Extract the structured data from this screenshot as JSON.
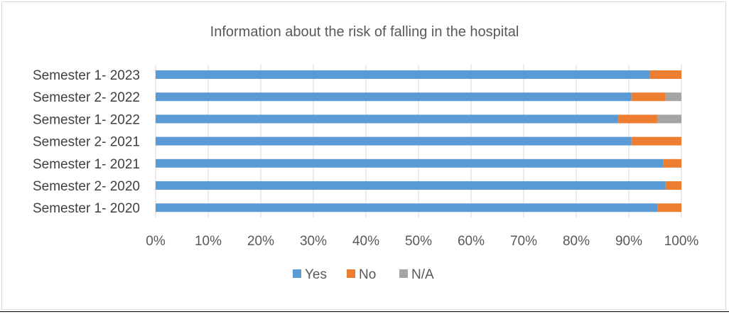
{
  "chart_data": {
    "type": "bar",
    "orientation": "horizontal",
    "stacked": "percent",
    "title": "Information about the risk of falling in the hospital",
    "categories": [
      "Semester 1- 2023",
      "Semester 2- 2022",
      "Semester 1- 2022",
      "Semester 2- 2021",
      "Semester 1- 2021",
      "Semester 2- 2020",
      "Semester 1- 2020"
    ],
    "series": [
      {
        "name": "Yes",
        "color": "#5b9bd5",
        "values": [
          94,
          90.5,
          88,
          90.5,
          96.5,
          97,
          95.5
        ]
      },
      {
        "name": "No",
        "color": "#ed7d31",
        "values": [
          6,
          6.5,
          7.5,
          9.5,
          3.5,
          3,
          4.5
        ]
      },
      {
        "name": "N/A",
        "color": "#a5a5a5",
        "values": [
          0,
          3,
          4.5,
          0,
          0,
          0,
          0
        ]
      }
    ],
    "xticks": [
      "0%",
      "10%",
      "20%",
      "30%",
      "40%",
      "50%",
      "60%",
      "70%",
      "80%",
      "90%",
      "100%"
    ],
    "xlim": [
      0,
      100
    ],
    "grid": true,
    "legend": "bottom"
  }
}
